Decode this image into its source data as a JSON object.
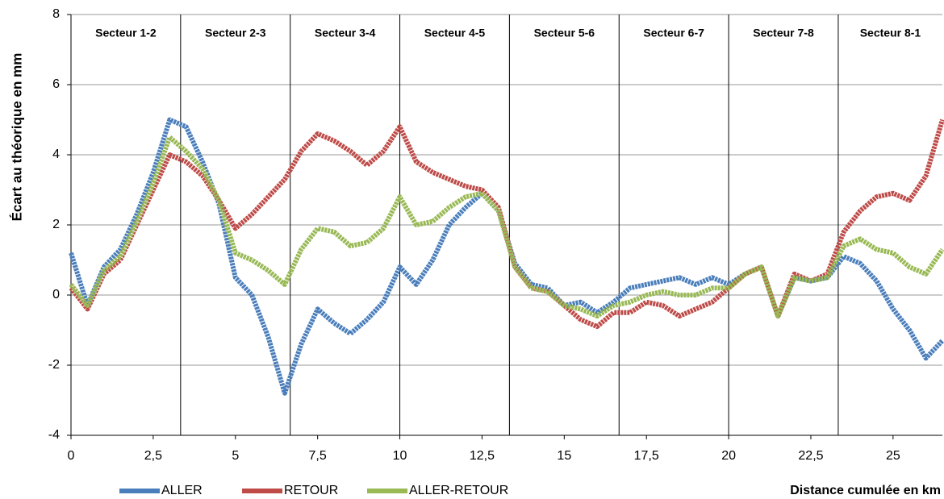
{
  "chart_data": {
    "type": "line",
    "y_label": "Écart au théorique en mm",
    "x_label": "Distance cumulée en km",
    "x": [
      0,
      0.5,
      1,
      1.5,
      2,
      2.5,
      3,
      3.5,
      4,
      4.5,
      5,
      5.5,
      6,
      6.5,
      7,
      7.5,
      8,
      8.5,
      9,
      9.5,
      10,
      10.5,
      11,
      11.5,
      12,
      12.5,
      13,
      13.5,
      14,
      14.5,
      15,
      15.5,
      16,
      16.5,
      17,
      17.5,
      18,
      18.5,
      19,
      19.5,
      20,
      20.5,
      21,
      21.5,
      22,
      22.5,
      23,
      23.5,
      24,
      24.5,
      25,
      25.5,
      26,
      26.5
    ],
    "series": [
      {
        "name": "ALLER",
        "color": "#4a7ebb",
        "values": [
          1.2,
          -0.3,
          0.8,
          1.3,
          2.3,
          3.5,
          5.0,
          4.8,
          3.8,
          2.6,
          0.5,
          0,
          -1.2,
          -2.8,
          -1.4,
          -0.4,
          -0.8,
          -1.1,
          -0.7,
          -0.2,
          0.8,
          0.3,
          1.0,
          2.0,
          2.5,
          2.9,
          2.4,
          0.9,
          0.3,
          0.2,
          -0.3,
          -0.2,
          -0.5,
          -0.2,
          0.2,
          0.3,
          0.4,
          0.5,
          0.3,
          0.5,
          0.3,
          0.6,
          0.8,
          -0.6,
          0.5,
          0.4,
          0.5,
          1.1,
          0.9,
          0.4,
          -0.4,
          -1.0,
          -1.8,
          -1.3
        ]
      },
      {
        "name": "RETOUR",
        "color": "#be4b48",
        "values": [
          0.2,
          -0.4,
          0.6,
          1.0,
          2.0,
          3.0,
          4.0,
          3.8,
          3.4,
          2.7,
          1.9,
          2.3,
          2.8,
          3.3,
          4.1,
          4.6,
          4.4,
          4.1,
          3.7,
          4.1,
          4.8,
          3.8,
          3.5,
          3.3,
          3.1,
          3.0,
          2.5,
          0.8,
          0.2,
          0.1,
          -0.3,
          -0.7,
          -0.9,
          -0.5,
          -0.5,
          -0.2,
          -0.3,
          -0.6,
          -0.4,
          -0.2,
          0.2,
          0.6,
          0.8,
          -0.6,
          0.6,
          0.4,
          0.6,
          1.8,
          2.4,
          2.8,
          2.9,
          2.7,
          3.4,
          5.0
        ]
      },
      {
        "name": "ALLER-RETOUR",
        "color": "#98b954",
        "values": [
          0.3,
          -0.3,
          0.7,
          1.1,
          2.1,
          3.2,
          4.5,
          4.1,
          3.6,
          2.7,
          1.2,
          1.0,
          0.7,
          0.3,
          1.3,
          1.9,
          1.8,
          1.4,
          1.5,
          1.9,
          2.8,
          2.0,
          2.1,
          2.5,
          2.8,
          2.9,
          2.4,
          0.8,
          0.2,
          0.1,
          -0.3,
          -0.4,
          -0.6,
          -0.3,
          -0.2,
          0.0,
          0.1,
          0.0,
          0.0,
          0.2,
          0.2,
          0.6,
          0.8,
          -0.6,
          0.5,
          0.4,
          0.5,
          1.4,
          1.6,
          1.3,
          1.2,
          0.8,
          0.6,
          1.3
        ]
      }
    ],
    "xlim": [
      0,
      26.5
    ],
    "xticks": [
      0,
      {
        "value": 2.5,
        "label": "2,5"
      },
      5,
      {
        "value": 7.5,
        "label": "7,5"
      },
      10,
      {
        "value": 12.5,
        "label": "12,5"
      },
      15,
      {
        "value": 17.5,
        "label": "17,5"
      },
      20,
      {
        "value": 22.5,
        "label": "22,5"
      },
      25
    ],
    "ylim": [
      -4,
      8
    ],
    "yticks": [
      -4,
      -2,
      0,
      2,
      4,
      6,
      8
    ],
    "grid": true,
    "legend": "bottom",
    "sectors": [
      "Secteur 1-2",
      "Secteur 2-3",
      "Secteur 3-4",
      "Secteur 4-5",
      "Secteur 5-6",
      "Secteur 6-7",
      "Secteur 7-8",
      "Secteur 8-1"
    ],
    "sector_edges": [
      3.333,
      6.667,
      10,
      13.333,
      16.667,
      20,
      23.333
    ]
  }
}
